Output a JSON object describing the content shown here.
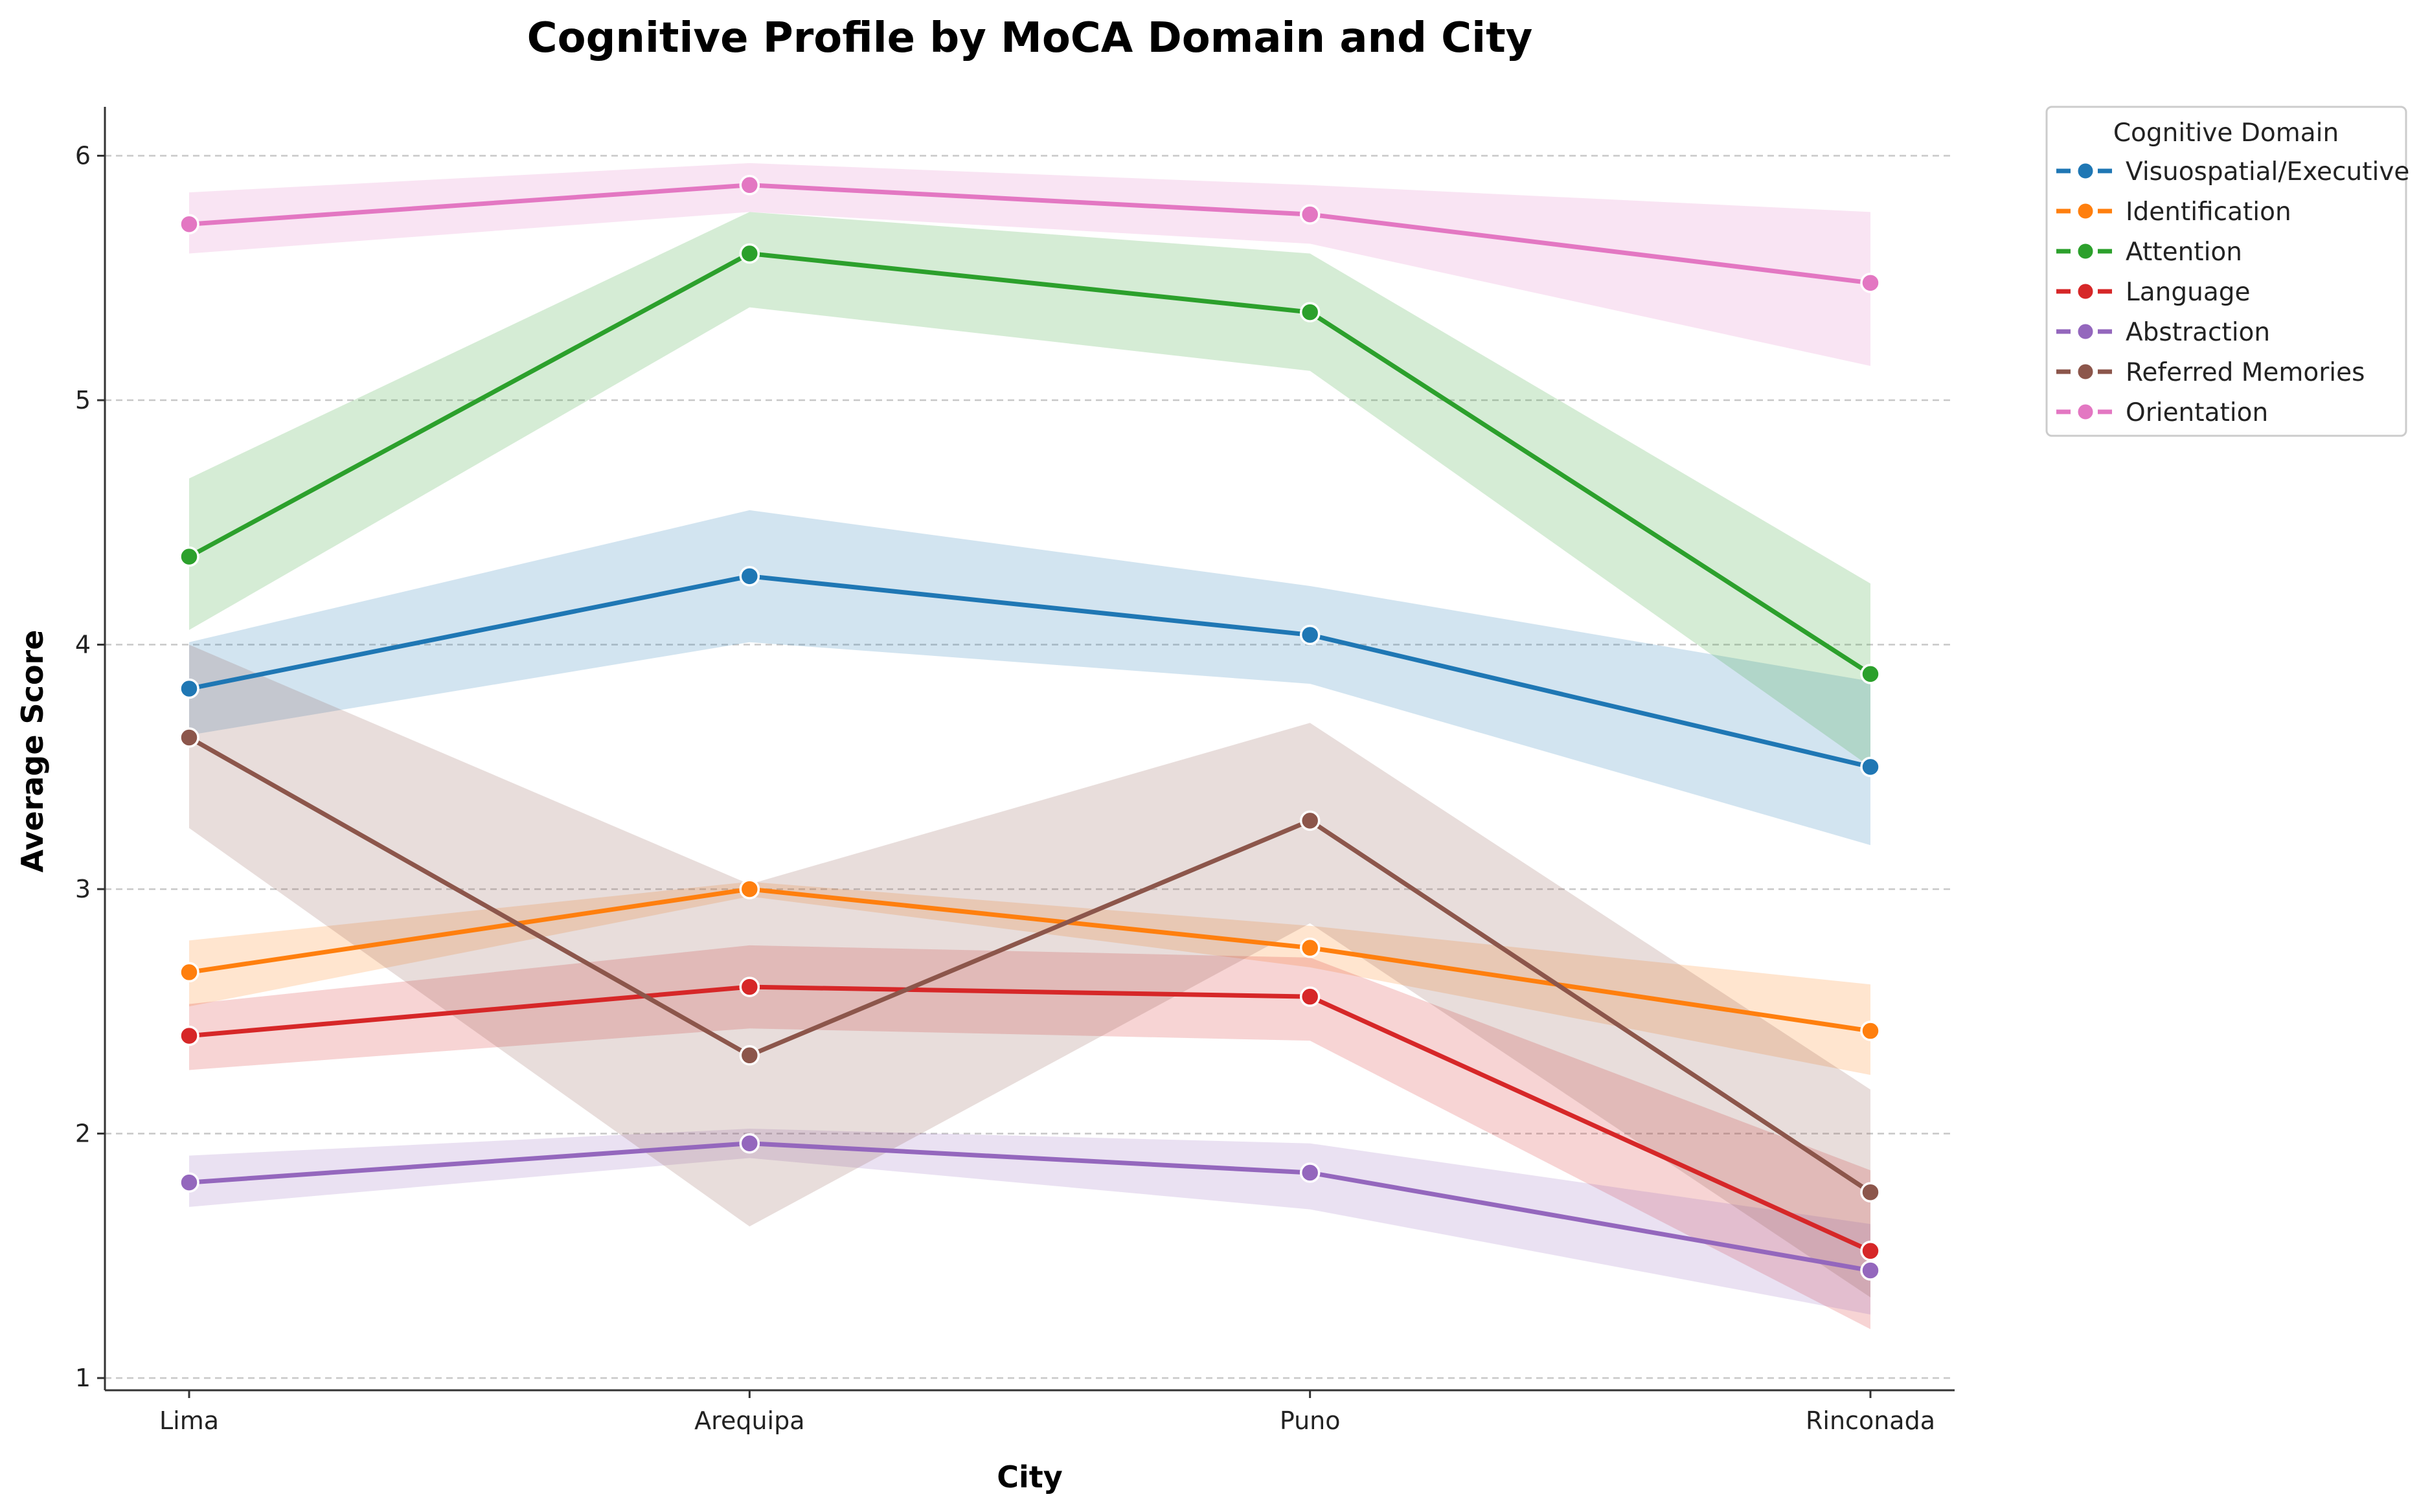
{
  "chart_data": {
    "type": "line",
    "title": "Cognitive Profile by MoCA Domain and City",
    "xlabel": "City",
    "ylabel": "Average Score",
    "categories": [
      "Lima",
      "Arequipa",
      "Puno",
      "Rinconada"
    ],
    "ylim": [
      0.95,
      6.2
    ],
    "yticks": [
      1,
      2,
      3,
      4,
      5,
      6
    ],
    "grid": "horizontal dashed",
    "legend": {
      "title": "Cognitive Domain",
      "placement": "outside top-right"
    },
    "series": [
      {
        "name": "Visuospatial/Executive",
        "color": "#1f77b4",
        "values": [
          3.82,
          4.28,
          4.04,
          3.5
        ],
        "ci_low": [
          3.63,
          4.01,
          3.84,
          3.18
        ],
        "ci_high": [
          4.01,
          4.55,
          4.24,
          3.85
        ]
      },
      {
        "name": "Identification",
        "color": "#ff7f0e",
        "values": [
          2.66,
          3.0,
          2.76,
          2.42
        ],
        "ci_low": [
          2.52,
          2.97,
          2.68,
          2.24
        ],
        "ci_high": [
          2.79,
          3.03,
          2.85,
          2.61
        ]
      },
      {
        "name": "Attention",
        "color": "#2ca02c",
        "values": [
          4.36,
          5.6,
          5.36,
          3.88
        ],
        "ci_low": [
          4.06,
          5.38,
          5.12,
          3.5
        ],
        "ci_high": [
          4.68,
          5.77,
          5.6,
          4.25
        ]
      },
      {
        "name": "Language",
        "color": "#d62728",
        "values": [
          2.4,
          2.6,
          2.56,
          1.52
        ],
        "ci_low": [
          2.26,
          2.43,
          2.38,
          1.2
        ],
        "ci_high": [
          2.53,
          2.77,
          2.72,
          1.85
        ]
      },
      {
        "name": "Abstraction",
        "color": "#9467bd",
        "values": [
          1.8,
          1.96,
          1.84,
          1.44
        ],
        "ci_low": [
          1.7,
          1.9,
          1.69,
          1.26
        ],
        "ci_high": [
          1.91,
          2.02,
          1.96,
          1.63
        ]
      },
      {
        "name": "Referred Memories",
        "color": "#8c564b",
        "values": [
          3.62,
          2.32,
          3.28,
          1.76
        ],
        "ci_low": [
          3.25,
          1.62,
          2.86,
          1.33
        ],
        "ci_high": [
          4.0,
          3.02,
          3.68,
          2.18
        ]
      },
      {
        "name": "Orientation",
        "color": "#e377c2",
        "values": [
          5.72,
          5.88,
          5.76,
          5.48
        ],
        "ci_low": [
          5.6,
          5.77,
          5.64,
          5.14
        ],
        "ci_high": [
          5.85,
          5.97,
          5.88,
          5.77
        ]
      }
    ]
  }
}
